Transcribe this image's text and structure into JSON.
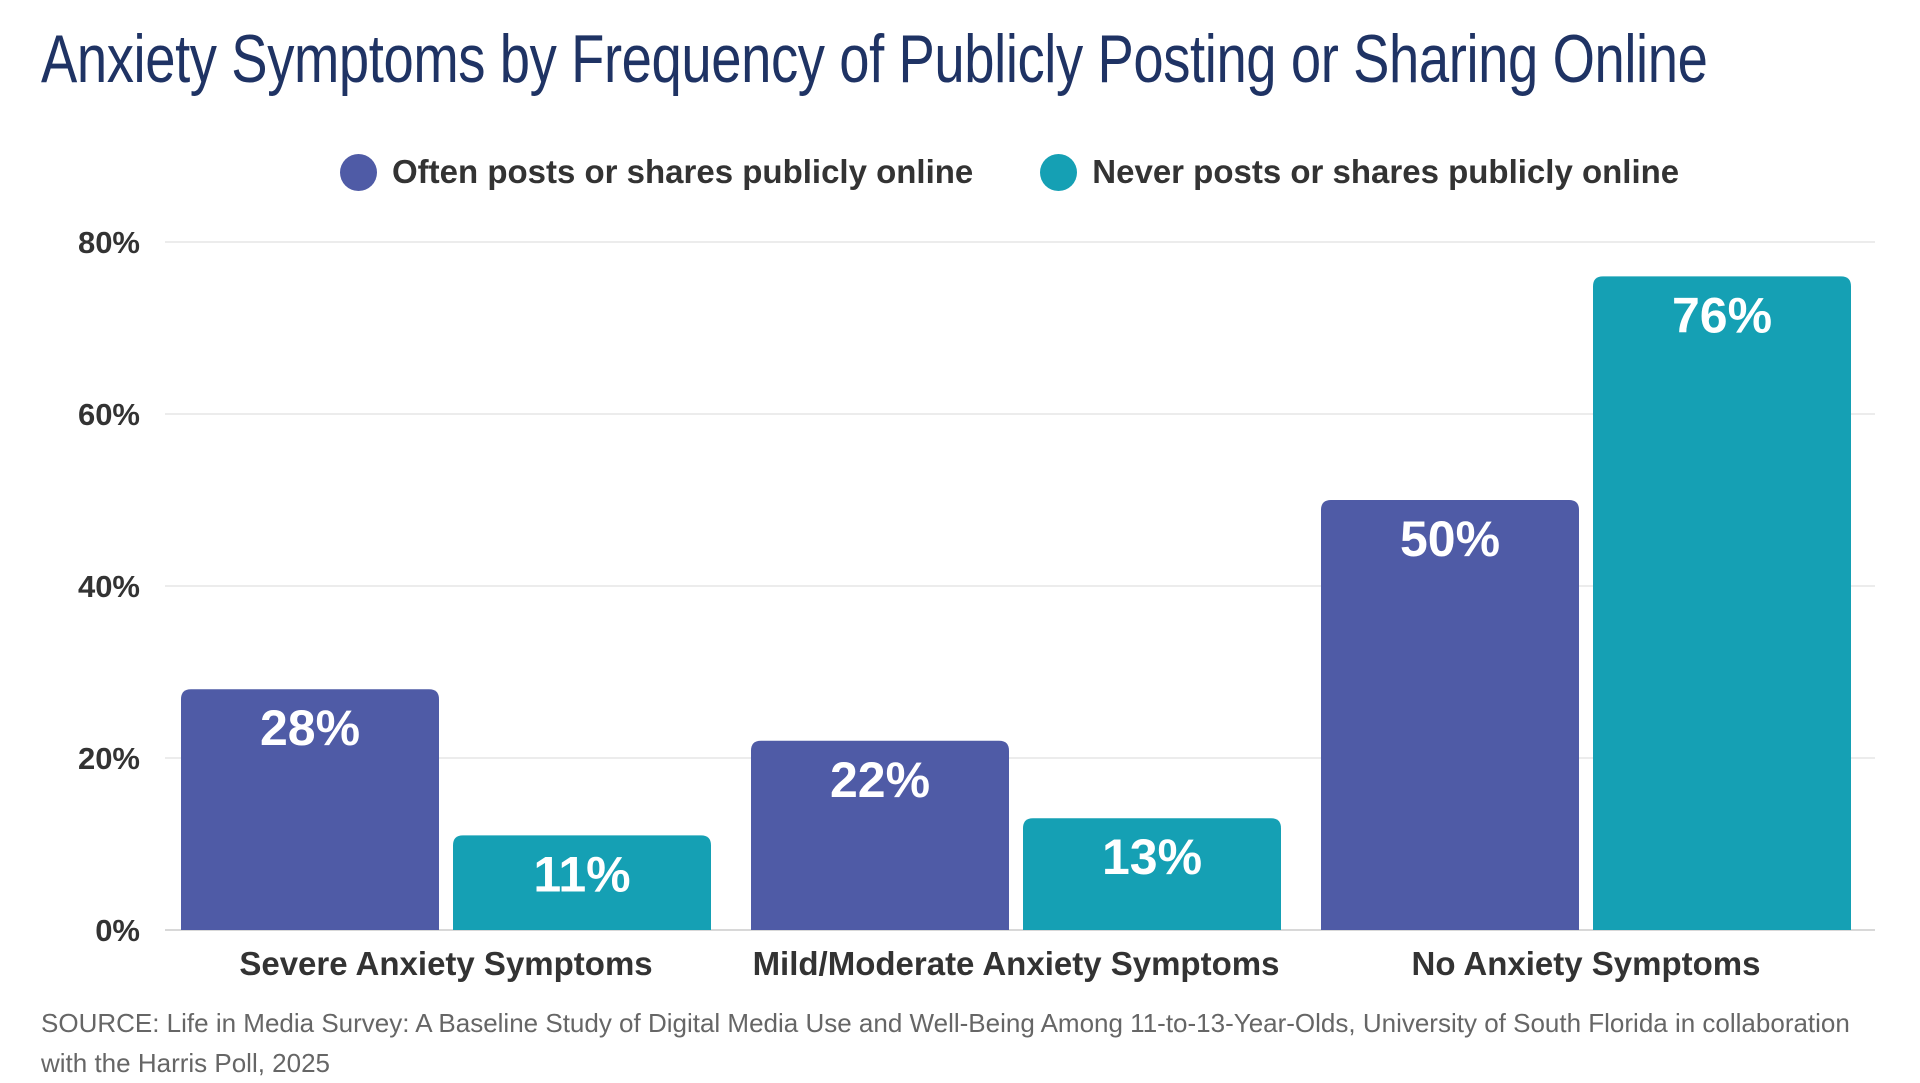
{
  "title": "Anxiety Symptoms by Frequency of Publicly Posting or Sharing Online",
  "legend": [
    {
      "label": "Often posts or shares publicly online",
      "color": "#4f5ba6"
    },
    {
      "label": "Never posts or shares publicly online",
      "color": "#15a0b4"
    }
  ],
  "source": "SOURCE: Life in Media Survey: A Baseline Study of Digital Media Use and Well-Being Among 11-to-13-Year-Olds, University of South Florida in collaboration with the Harris Poll, 2025",
  "chart_data": {
    "type": "bar",
    "title": "Anxiety Symptoms by Frequency of Publicly Posting or Sharing Online",
    "categories": [
      "Severe Anxiety Symptoms",
      "Mild/Moderate Anxiety Symptoms",
      "No Anxiety Symptoms"
    ],
    "series": [
      {
        "name": "Often posts or shares publicly online",
        "values": [
          28,
          22,
          50
        ],
        "color": "#4f5ba6"
      },
      {
        "name": "Never posts or shares publicly online",
        "values": [
          11,
          13,
          76
        ],
        "color": "#15a0b4"
      }
    ],
    "ylim": [
      0,
      80
    ],
    "yticks": [
      0,
      20,
      40,
      60,
      80
    ],
    "ytick_labels": [
      "0%",
      "20%",
      "40%",
      "60%",
      "80%"
    ],
    "value_suffix": "%",
    "grid": true,
    "legend_position": "top",
    "xlabel": "",
    "ylabel": ""
  }
}
